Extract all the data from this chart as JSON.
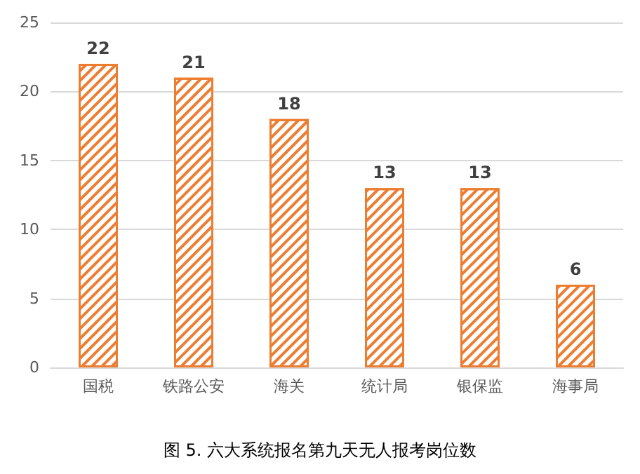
{
  "chart_data": {
    "type": "bar",
    "title": "图 5. 六大系统报名第九天无人报考岗位数",
    "categories": [
      "国税",
      "铁路公安",
      "海关",
      "统计局",
      "银保监",
      "海事局"
    ],
    "values": [
      22,
      21,
      18,
      13,
      13,
      6
    ],
    "color": "#ed7d31",
    "ylim": [
      0,
      25
    ],
    "yticks": [
      0,
      5,
      10,
      15,
      20,
      25
    ],
    "grid": "y",
    "data_labels": true
  }
}
